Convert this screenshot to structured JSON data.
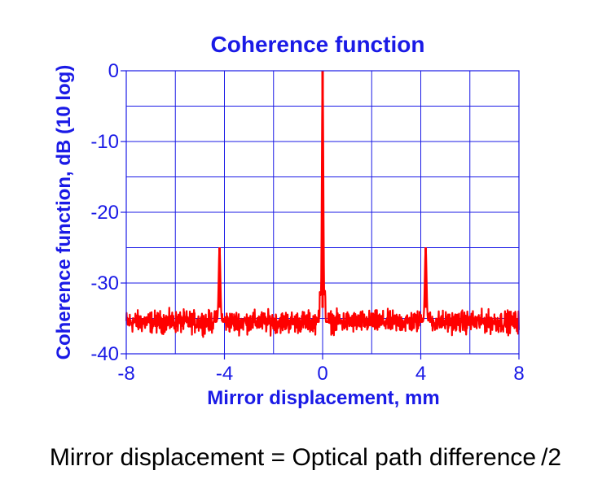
{
  "chart_data": {
    "type": "line",
    "title": "Coherence function",
    "xlabel": "Mirror displacement, mm",
    "ylabel": "Coherence function, dB (10 log)",
    "xlim": [
      -8,
      8
    ],
    "ylim": [
      -40,
      0
    ],
    "x_ticks": [
      -8,
      -4,
      0,
      4,
      8
    ],
    "x_tick_labels": [
      "-8",
      "-4",
      "0",
      "4",
      "8"
    ],
    "y_ticks": [
      0,
      -10,
      -20,
      -30,
      -40
    ],
    "y_tick_labels": [
      "0",
      "-10",
      "-20",
      "-30",
      "-40"
    ],
    "grid": true,
    "series": [
      {
        "color": "#ff0000",
        "noise_floor": -35.5,
        "peaks": [
          {
            "x": -4.2,
            "y": -25
          },
          {
            "x": 0,
            "y": 0
          },
          {
            "x": 4.2,
            "y": -25
          }
        ]
      }
    ]
  },
  "colors": {
    "text": "#1a1ae6",
    "grid": "#1a1ae6",
    "line": "#ff0000"
  },
  "caption": "Mirror displacement = Optical path difference /2"
}
